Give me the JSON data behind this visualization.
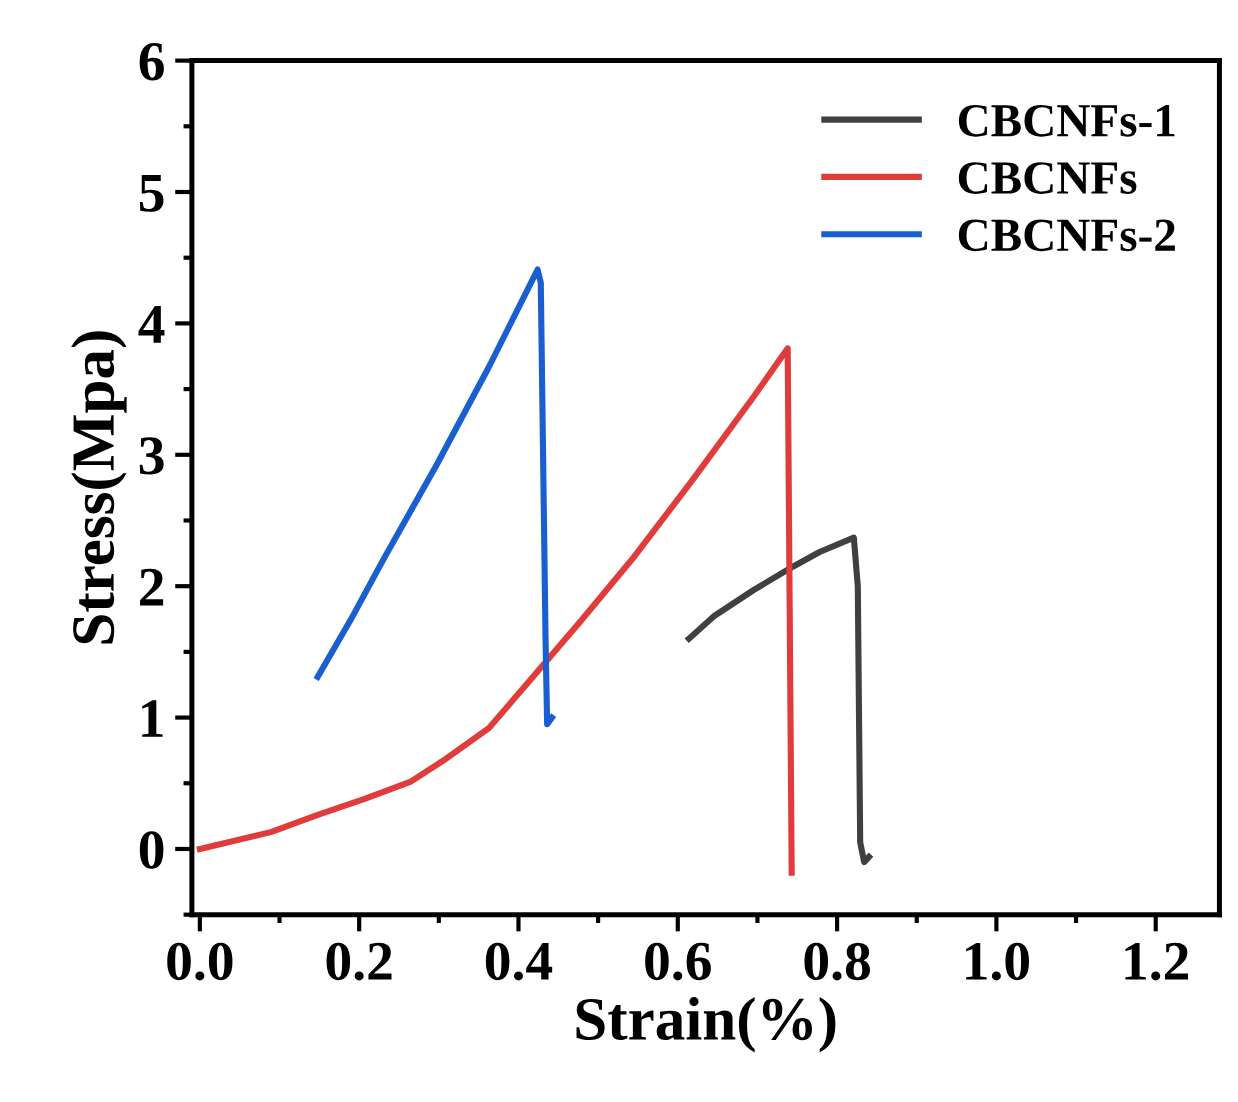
{
  "chart_data": {
    "type": "line",
    "xlabel": "Strain(%)",
    "ylabel": "Stress(Mpa)",
    "xlim": [
      -0.01,
      1.28
    ],
    "ylim": [
      -0.5,
      6
    ],
    "xticks": [
      {
        "value": 0,
        "label": "0.0"
      },
      {
        "value": 0.2,
        "label": "0.2"
      },
      {
        "value": 0.4,
        "label": "0.4"
      },
      {
        "value": 0.6,
        "label": "0.6"
      },
      {
        "value": 0.8,
        "label": "0.8"
      },
      {
        "value": 1.0,
        "label": "1.0"
      },
      {
        "value": 1.2,
        "label": "1.2"
      }
    ],
    "yticks": [
      0,
      1,
      2,
      3,
      4,
      5,
      6
    ],
    "grid": false,
    "legend": "top right",
    "marker": "none",
    "line_style": "solid",
    "series": [
      {
        "name": "CBCNFs-1",
        "color": "#404040",
        "x": [
          0.614,
          0.645,
          0.695,
          0.745,
          0.778,
          0.821,
          0.826,
          0.829,
          0.834,
          0.84
        ],
        "values": [
          1.6,
          1.77,
          1.97,
          2.15,
          2.26,
          2.37,
          2.0,
          0.05,
          -0.1,
          -0.06
        ]
      },
      {
        "name": "CBCNFs",
        "color": "#e03c3c",
        "x": [
          0,
          0.09,
          0.148,
          0.206,
          0.264,
          0.305,
          0.363,
          0.421,
          0.479,
          0.546,
          0.62,
          0.695,
          0.738,
          0.743
        ],
        "values": [
          0,
          0.13,
          0.26,
          0.38,
          0.51,
          0.67,
          0.92,
          1.33,
          1.74,
          2.23,
          2.82,
          3.44,
          3.81,
          -0.18
        ]
      },
      {
        "name": "CBCNFs-2",
        "color": "#1a5fd0",
        "x": [
          0.148,
          0.189,
          0.231,
          0.297,
          0.363,
          0.424,
          0.428,
          0.434,
          0.436,
          0.442
        ],
        "values": [
          1.31,
          1.74,
          2.21,
          2.92,
          3.67,
          4.41,
          4.31,
          1.59,
          0.95,
          1.0
        ]
      }
    ]
  }
}
